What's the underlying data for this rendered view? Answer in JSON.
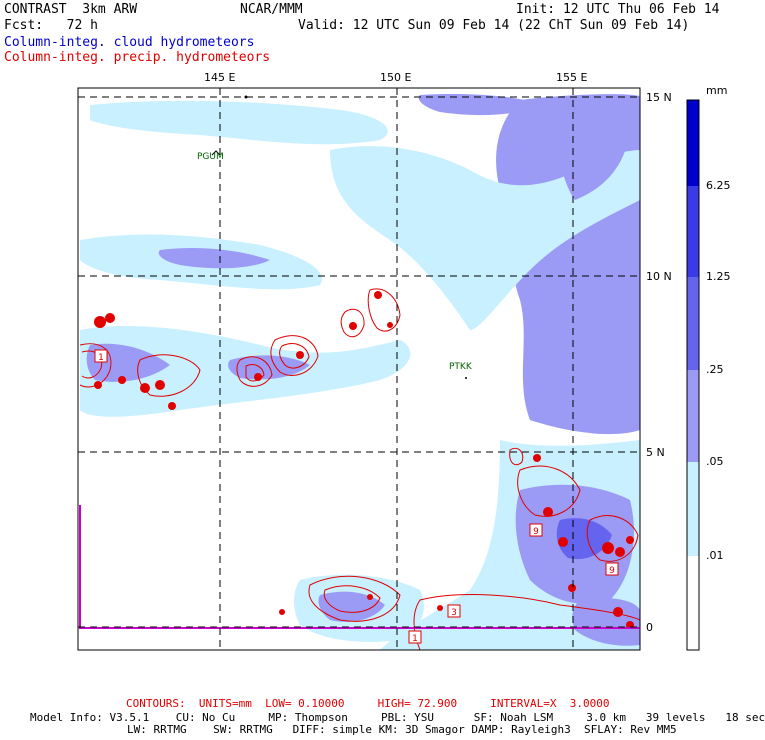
{
  "header": {
    "title": "CONTRAST  3km ARW",
    "org": "NCAR/MMM",
    "init": "Init: 12 UTC Thu 06 Feb 14",
    "fcst": "Fcst:   72 h",
    "valid": "Valid: 12 UTC Sun 09 Feb 14 (22 ChT Sun 09 Feb 14)",
    "legend_cloud": "Column-integ. cloud hydrometeors",
    "legend_precip": "Column-integ. precip. hydrometeors"
  },
  "map": {
    "lon_labels": [
      "145 E",
      "150 E",
      "155 E"
    ],
    "lat_labels": [
      "15 N",
      "10 N",
      "5 N",
      "0"
    ],
    "stations": [
      "PGUM",
      "PTKK"
    ],
    "contour_box_labels": [
      "1",
      "9",
      "3",
      "1",
      "9"
    ]
  },
  "colorbar": {
    "unit": "mm",
    "levels": [
      "6.25",
      "1.25",
      ".25",
      ".05",
      ".01"
    ],
    "colors": [
      "#0000cc",
      "#3a3ae6",
      "#6464ef",
      "#9b9bf5",
      "#c8f0ff",
      "#ffffff"
    ]
  },
  "colors": {
    "cloud_legend": "#0000cc",
    "precip_legend": "#e00000",
    "station": "#006400",
    "light_cloud": "#c8f0ff",
    "medium_cloud": "#9b9bf5",
    "heavy_cloud": "#6464ef",
    "precip_contour": "#e00000"
  },
  "footer": {
    "contours": "CONTOURS:  UNITS=mm  LOW= 0.10000     HIGH= 72.900     INTERVAL=X  3.0000",
    "model_line1": "Model Info: V3.5.1    CU: No Cu     MP: Thompson     PBL: YSU      SF: Noah LSM     3.0 km   39 levels   18 sec",
    "model_line2": "LW: RRTMG    SW: RRTMG   DIFF: simple KM: 3D Smagor DAMP: Rayleigh3  SFLAY: Rev MM5"
  }
}
